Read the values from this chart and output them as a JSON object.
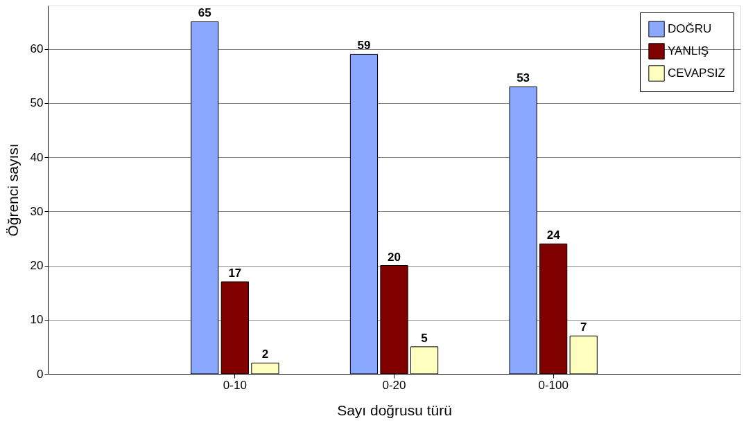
{
  "chart_data": {
    "type": "bar",
    "xlabel": "Sayı  doğrusu türü",
    "ylabel": "Öğrenci sayısı",
    "categories": [
      "0-10",
      "0-20",
      "0-100"
    ],
    "series": [
      {
        "name": "DOĞRU",
        "color": "#8aa8ff",
        "values": [
          65,
          59,
          53
        ]
      },
      {
        "name": "YANLIŞ",
        "color": "#800000",
        "values": [
          17,
          20,
          24
        ]
      },
      {
        "name": "CEVAPSIZ",
        "color": "#ffffc0",
        "values": [
          2,
          5,
          7
        ]
      }
    ],
    "ylim": [
      0,
      68
    ],
    "yticks": [
      0,
      10,
      20,
      30,
      40,
      50,
      60
    ],
    "grid": "y",
    "legend": "top right",
    "data_labels": true
  }
}
